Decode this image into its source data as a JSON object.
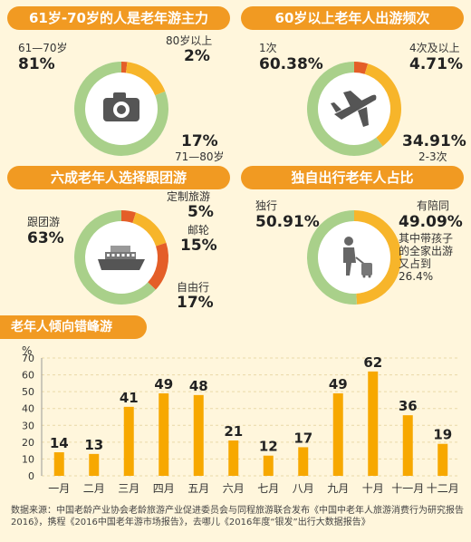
{
  "colors": {
    "orange": "#f19a22",
    "green": "#a9d08a",
    "red": "#e45e28",
    "bar": "#f7a800",
    "background": "#fff6dc"
  },
  "chart_data": [
    {
      "type": "pie",
      "title": "61岁-70岁的人是老年游主力",
      "icon": "camera-icon",
      "slices": [
        {
          "name": "61—70岁",
          "value": 81,
          "label": "81%",
          "color": "#a9d08a"
        },
        {
          "name": "80岁以上",
          "value": 2,
          "label": "2%",
          "color": "#e45e28"
        },
        {
          "name": "71—80岁",
          "value": 17,
          "label": "17%",
          "color": "#f7b52a"
        }
      ]
    },
    {
      "type": "pie",
      "title": "60岁以上老年人出游频次",
      "icon": "airplane-icon",
      "slices": [
        {
          "name": "1次",
          "value": 60.38,
          "label": "60.38%",
          "color": "#a9d08a"
        },
        {
          "name": "4次及以上",
          "value": 4.71,
          "label": "4.71%",
          "color": "#e45e28"
        },
        {
          "name": "2-3次",
          "value": 34.91,
          "label": "34.91%",
          "color": "#f7b52a"
        }
      ]
    },
    {
      "type": "pie",
      "title": "六成老年人选择跟团游",
      "icon": "cruise-ship-icon",
      "slices": [
        {
          "name": "跟团游",
          "value": 63,
          "label": "63%",
          "color": "#a9d08a"
        },
        {
          "name": "定制旅游",
          "value": 5,
          "label": "5%",
          "color": "#e45e28"
        },
        {
          "name": "邮轮",
          "value": 15,
          "label": "15%",
          "color": "#f7b52a"
        },
        {
          "name": "自由行",
          "value": 17,
          "label": "17%",
          "color": "#e45e28"
        }
      ]
    },
    {
      "type": "pie",
      "title": "独自出行老年人占比",
      "icon": "traveler-icon",
      "note": "其中带孩子的全家出游又占到26.4%",
      "slices": [
        {
          "name": "独行",
          "value": 50.91,
          "label": "50.91%",
          "color": "#a9d08a"
        },
        {
          "name": "有陪同",
          "value": 49.09,
          "label": "49.09%",
          "color": "#f7b52a"
        }
      ]
    },
    {
      "type": "bar",
      "title": "老年人倾向错峰游",
      "ylabel": "%",
      "ylim": [
        0,
        70
      ],
      "yticks": [
        0,
        10,
        20,
        30,
        40,
        50,
        60,
        70
      ],
      "categories": [
        "一月",
        "二月",
        "三月",
        "四月",
        "五月",
        "六月",
        "七月",
        "八月",
        "九月",
        "十月",
        "十一月",
        "十二月"
      ],
      "values": [
        14,
        13,
        41,
        49,
        48,
        21,
        12,
        17,
        49,
        62,
        36,
        19
      ]
    }
  ],
  "footer": {
    "source": "数据来源：中国老龄产业协会老龄旅游产业促进委员会与同程旅游联合发布《中国中老年人旅游消费行为研究报告2016》，携程《2016中国老年游市场报告》，去哪儿《2016年度“银发”出行大数据报告》"
  }
}
